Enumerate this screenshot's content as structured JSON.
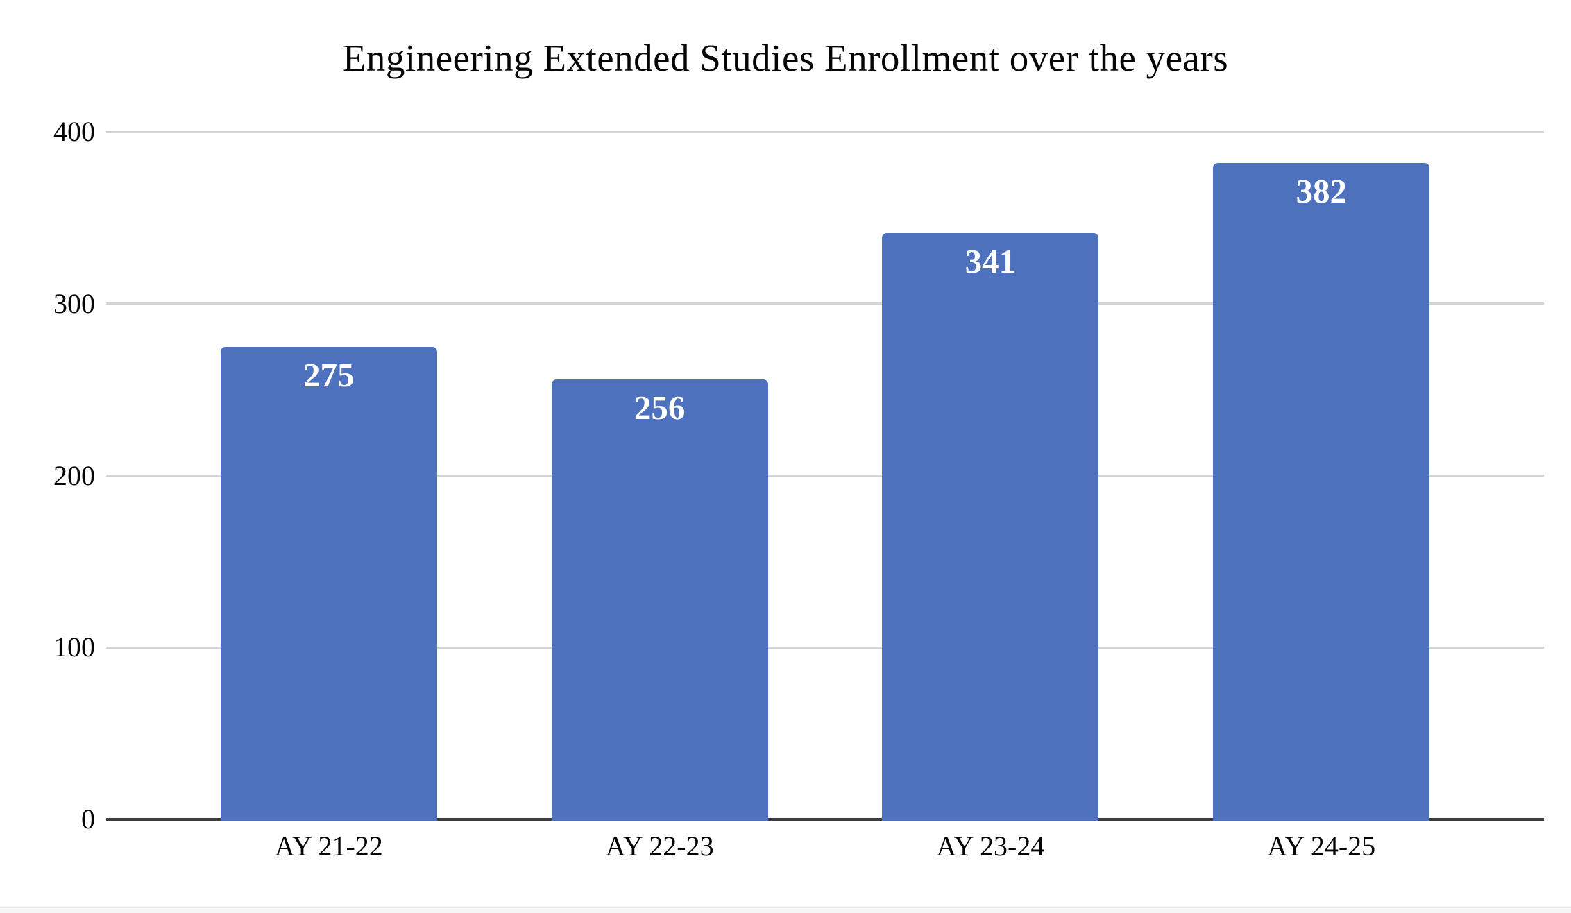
{
  "chart_data": {
    "type": "bar",
    "title": "Engineering Extended Studies Enrollment over the years",
    "categories": [
      "AY 21-22",
      "AY 22-23",
      "AY 23-24",
      "AY 24-25"
    ],
    "values": [
      275,
      256,
      341,
      382
    ],
    "bar_value_labels": [
      "275",
      "256",
      "341",
      "382"
    ],
    "xlabel": "",
    "ylabel": "",
    "y_ticks": [
      0,
      100,
      200,
      300,
      400
    ],
    "y_tick_labels": [
      "0",
      "100",
      "200",
      "300",
      "400"
    ],
    "ylim": [
      0,
      400
    ],
    "grid": "horizontal",
    "legend": "none",
    "colors": {
      "bar": "#4e71bd",
      "gridline": "#d4d4d4",
      "axis_line": "#3b3b3b",
      "text": "#050505",
      "bar_label_text": "#ffffff",
      "background": "#ffffff"
    }
  }
}
